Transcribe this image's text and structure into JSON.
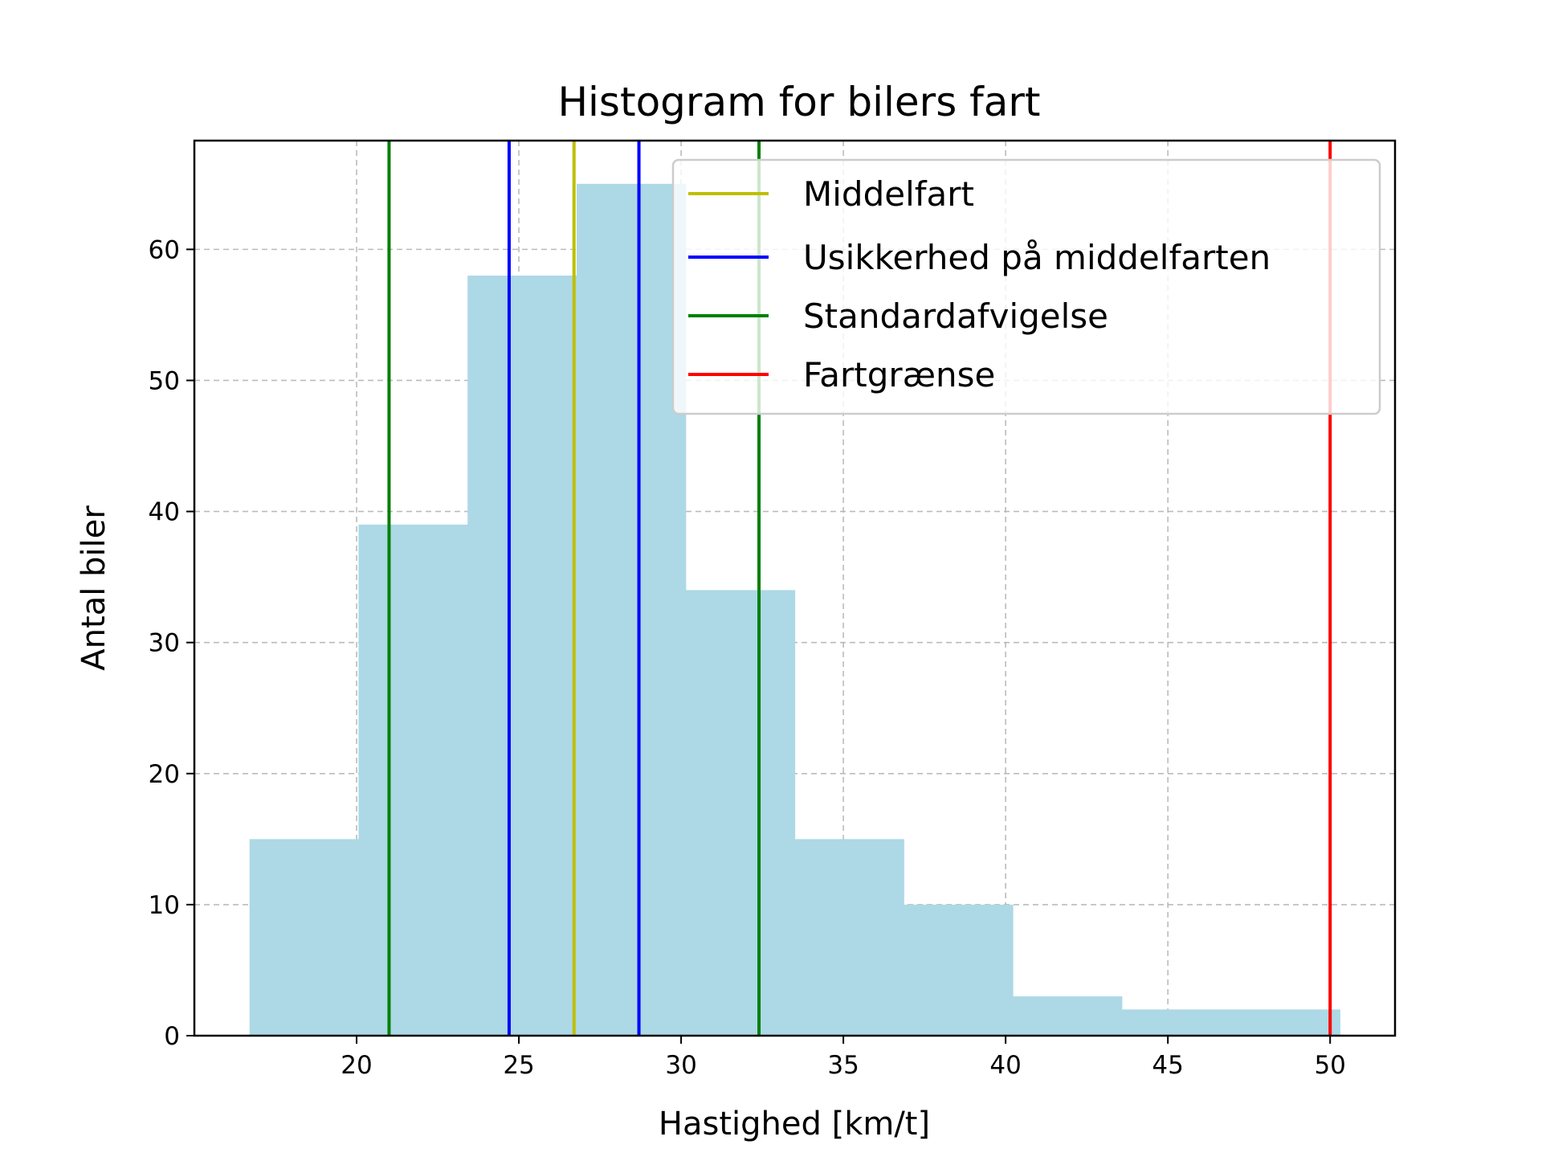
{
  "chart_data": {
    "type": "bar",
    "title": "Histogram for bilers fart",
    "xlabel": "Hastighed [km/t]",
    "ylabel": "Antal biler",
    "xlim": [
      15,
      52
    ],
    "ylim": [
      0,
      68.3
    ],
    "xticks": [
      20,
      25,
      30,
      35,
      40,
      45,
      50
    ],
    "yticks": [
      0,
      10,
      20,
      30,
      40,
      50,
      60
    ],
    "grid": true,
    "legend_position": "top-right",
    "bar_color": "#add8e6",
    "bins": [
      {
        "x0": 16.7,
        "x1": 20.06,
        "count": 15
      },
      {
        "x0": 20.06,
        "x1": 23.42,
        "count": 39
      },
      {
        "x0": 23.42,
        "x1": 26.78,
        "count": 58
      },
      {
        "x0": 26.78,
        "x1": 30.14,
        "count": 65
      },
      {
        "x0": 30.14,
        "x1": 33.5,
        "count": 34
      },
      {
        "x0": 33.5,
        "x1": 36.86,
        "count": 15
      },
      {
        "x0": 36.86,
        "x1": 40.22,
        "count": 10
      },
      {
        "x0": 40.22,
        "x1": 43.58,
        "count": 3
      },
      {
        "x0": 43.58,
        "x1": 46.94,
        "count": 2
      },
      {
        "x0": 46.94,
        "x1": 50.3,
        "count": 2
      }
    ],
    "vlines": [
      {
        "name": "Middelfart",
        "x": 26.7,
        "color": "#bfbf00"
      },
      {
        "name": "Usikkerhed på middelfarten",
        "x": 24.7,
        "color": "#0000ff"
      },
      {
        "name": "Usikkerhed på middelfarten",
        "x": 28.7,
        "color": "#0000ff"
      },
      {
        "name": "Standardafvigelse",
        "x": 21.0,
        "color": "#008000"
      },
      {
        "name": "Standardafvigelse",
        "x": 32.4,
        "color": "#008000"
      },
      {
        "name": "Fartgrænse",
        "x": 50.0,
        "color": "#ff0000"
      }
    ],
    "legend": [
      {
        "label": "Middelfart",
        "color": "#bfbf00"
      },
      {
        "label": "Usikkerhed på middelfarten",
        "color": "#0000ff"
      },
      {
        "label": "Standardafvigelse",
        "color": "#008000"
      },
      {
        "label": "Fartgrænse",
        "color": "#ff0000"
      }
    ]
  }
}
